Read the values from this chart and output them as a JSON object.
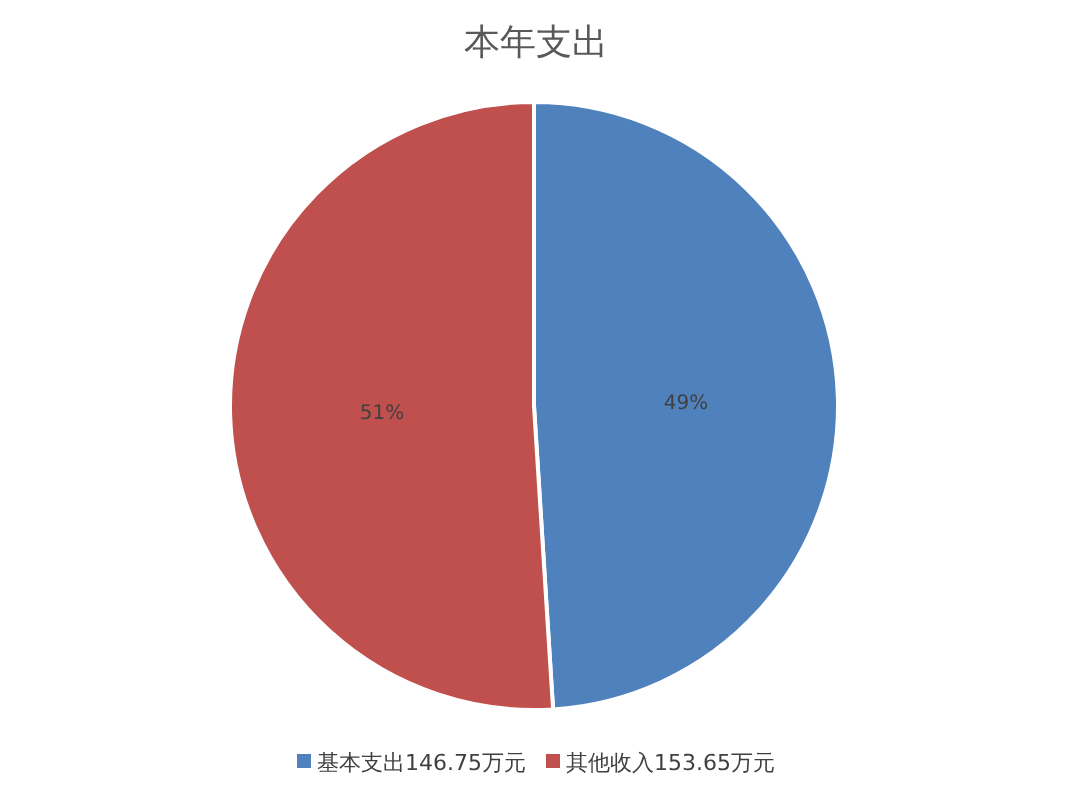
{
  "chart_data": {
    "type": "pie",
    "title": "本年支出",
    "categories": [
      "基本支出146.75万元",
      "其他收入153.65万元"
    ],
    "values": [
      49,
      51
    ],
    "value_labels": [
      "49%",
      "51%"
    ],
    "colors": [
      "#4f81bd",
      "#c0504d"
    ],
    "legend": "bottom"
  }
}
